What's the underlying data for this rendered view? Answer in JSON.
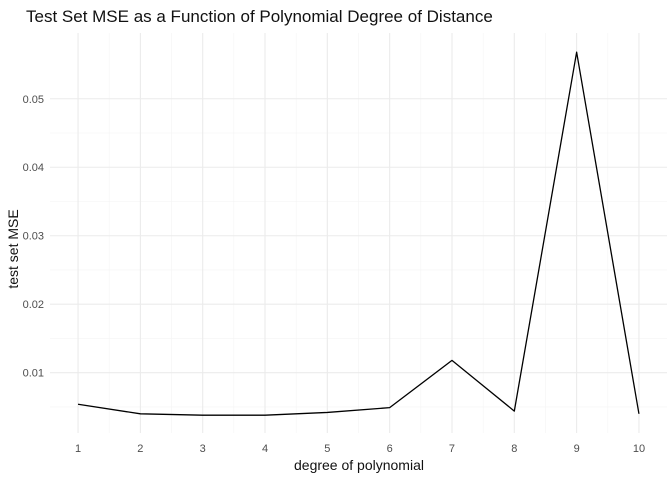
{
  "chart_data": {
    "type": "line",
    "title": "Test Set MSE as a Function of Polynomial Degree of Distance",
    "xlabel": "degree of polynomial",
    "ylabel": "test set MSE",
    "x": [
      1,
      2,
      3,
      4,
      5,
      6,
      7,
      8,
      9,
      10
    ],
    "x_tick_labels": [
      "1",
      "2",
      "3",
      "4",
      "5",
      "6",
      "7",
      "8",
      "9",
      "10"
    ],
    "y_ticks": [
      0.01,
      0.02,
      0.03,
      0.04,
      0.05
    ],
    "y_tick_labels": [
      "0.01",
      "0.02",
      "0.03",
      "0.04",
      "0.05"
    ],
    "series": [
      {
        "values": [
          0.0054,
          0.004,
          0.0038,
          0.0038,
          0.0042,
          0.0049,
          0.0118,
          0.0044,
          0.0568,
          0.004
        ]
      }
    ],
    "xlim": [
      0.55,
      10.45
    ],
    "ylim": [
      0.0012,
      0.0596
    ],
    "grid": true,
    "legend": "none",
    "line_color": "#000000",
    "grid_color": "#ebebeb",
    "background": "#ffffff"
  }
}
